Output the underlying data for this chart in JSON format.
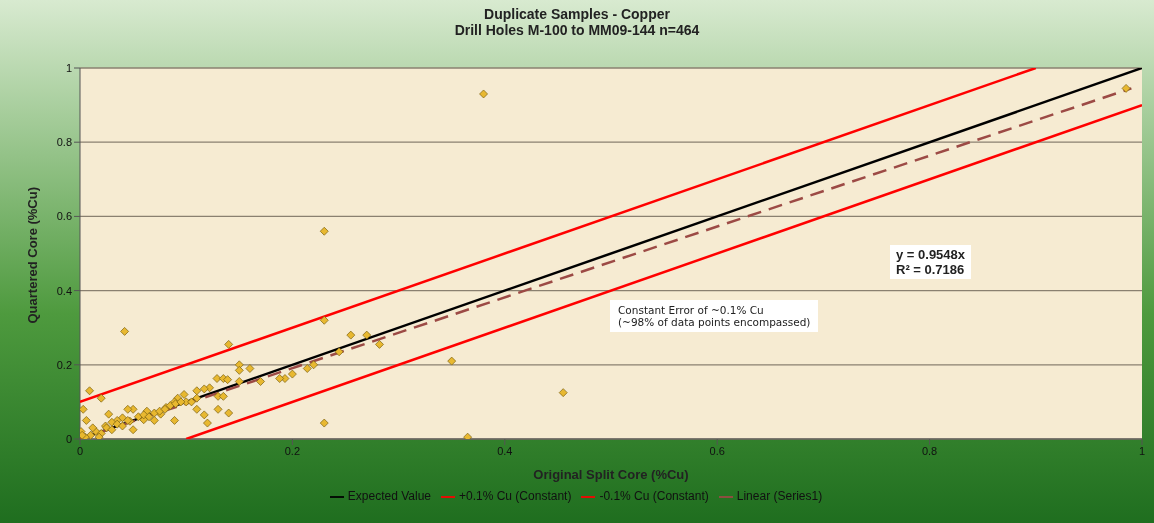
{
  "chart_data": {
    "type": "scatter",
    "title": "Duplicate Samples - Copper",
    "subtitle": "Drill Holes M-100 to MM09-144 n=464",
    "xlabel": "Original Split Core (%Cu)",
    "ylabel": "Quartered Core (%Cu)",
    "xlim": [
      0,
      1
    ],
    "ylim": [
      0,
      1
    ],
    "xticks": [
      0,
      0.2,
      0.4,
      0.6,
      0.8,
      1
    ],
    "yticks": [
      0,
      0.2,
      0.4,
      0.6,
      0.8,
      1
    ],
    "grid": "y",
    "legend": "bottom",
    "annotations": [
      "y = 0.9548x\nR² = 0.7186",
      "Constant Error of ~0.1% Cu\n(~98% of data points encompassed)"
    ],
    "series": [
      {
        "marker": "diamond",
        "color": "#e8b830",
        "x": [
          0.38,
          0.23,
          0.042,
          0.14,
          0.23,
          0.23,
          0.35,
          0.365,
          0.455,
          0.985,
          0.255,
          0.27,
          0.282,
          0.244,
          0.214,
          0.22,
          0.2,
          0.193,
          0.188,
          0.17,
          0.16,
          0.15,
          0.15,
          0.15,
          0.14,
          0.13,
          0.12,
          0.117,
          0.129,
          0.135,
          0.139,
          0.13,
          0.135,
          0.122,
          0.117,
          0.11,
          0.11,
          0.11,
          0.098,
          0.092,
          0.089,
          0.089,
          0.081,
          0.076,
          0.07,
          0.063,
          0.06,
          0.05,
          0.045,
          0.05,
          0.047,
          0.04,
          0.035,
          0.03,
          0.027,
          0.024,
          0.02,
          0.009,
          0.003,
          0.006,
          0.001,
          0.01,
          0.015,
          0.02,
          0.025,
          0.03,
          0.035,
          0.04,
          0.005,
          0.002,
          0.012,
          0.018,
          0.045,
          0.055,
          0.06,
          0.065,
          0.07,
          0.075,
          0.08,
          0.085,
          0.09,
          0.1,
          0.105,
          0.095
        ],
        "values": [
          0.93,
          0.56,
          0.29,
          0.255,
          0.32,
          0.043,
          0.21,
          0.005,
          0.125,
          0.945,
          0.28,
          0.28,
          0.255,
          0.235,
          0.19,
          0.2,
          0.175,
          0.163,
          0.163,
          0.155,
          0.19,
          0.2,
          0.185,
          0.155,
          0.07,
          0.08,
          0.043,
          0.065,
          0.163,
          0.163,
          0.16,
          0.115,
          0.115,
          0.138,
          0.135,
          0.13,
          0.11,
          0.08,
          0.12,
          0.11,
          0.1,
          0.05,
          0.085,
          0.067,
          0.05,
          0.075,
          0.052,
          0.08,
          0.08,
          0.025,
          0.048,
          0.057,
          0.05,
          0.045,
          0.067,
          0.035,
          0.11,
          0.13,
          0.08,
          0.05,
          0.02,
          0.01,
          0.02,
          0.015,
          0.03,
          0.025,
          0.04,
          0.035,
          0.005,
          0.01,
          0.03,
          0.005,
          0.05,
          0.06,
          0.065,
          0.06,
          0.07,
          0.075,
          0.08,
          0.09,
          0.095,
          0.1,
          0.1,
          0.1
        ]
      },
      {
        "type": "line",
        "name": "Expected Value",
        "color": "#000000",
        "line_style": "solid",
        "marker": "none",
        "x": [
          0,
          1
        ],
        "values": [
          0,
          1
        ]
      },
      {
        "type": "line",
        "name": "+0.1% Cu (Constant)",
        "color": "#ff0000",
        "line_style": "solid",
        "marker": "none",
        "x": [
          0,
          0.9
        ],
        "values": [
          0.1,
          1
        ]
      },
      {
        "type": "line",
        "name": "-0.1% Cu (Constant)",
        "color": "#ff0000",
        "line_style": "solid",
        "marker": "none",
        "x": [
          0.1,
          1
        ],
        "values": [
          0,
          0.9
        ]
      },
      {
        "type": "line",
        "name": "Linear (Series1)",
        "color": "#9c4a45",
        "line_style": "dashed",
        "marker": "none",
        "x": [
          0,
          0.99
        ],
        "values": [
          0,
          0.945
        ]
      }
    ]
  }
}
